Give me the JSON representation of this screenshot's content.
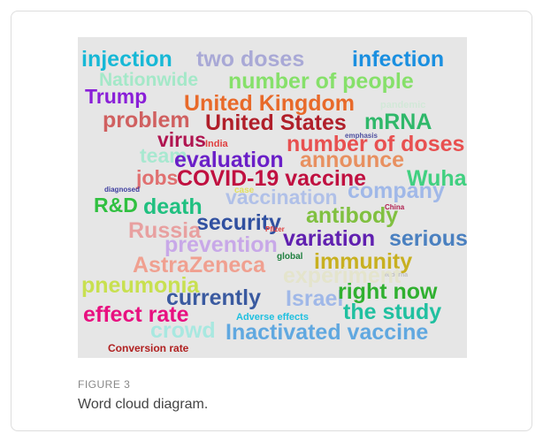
{
  "figure": {
    "words": [
      {
        "text": "injection",
        "color": "#17b8d6"
      },
      {
        "text": "two doses",
        "color": "#a9a9d6"
      },
      {
        "text": "infection",
        "color": "#1a8fe0"
      },
      {
        "text": "Nationwide",
        "color": "#a4e8c8"
      },
      {
        "text": "number of people",
        "color": "#86e06a"
      },
      {
        "text": "Trump",
        "color": "#8a1fd8"
      },
      {
        "text": "United Kingdom",
        "color": "#e86a2a"
      },
      {
        "text": "pandemic",
        "color": "#d2e8d8"
      },
      {
        "text": "problem",
        "color": "#d06060"
      },
      {
        "text": "United States",
        "color": "#b01f2a"
      },
      {
        "text": "mRNA",
        "color": "#2fb86a"
      },
      {
        "text": "emphasis",
        "color": "#5050a0"
      },
      {
        "text": "virus",
        "color": "#b01550"
      },
      {
        "text": "India",
        "color": "#e04040"
      },
      {
        "text": "number of doses",
        "color": "#e85050"
      },
      {
        "text": "team",
        "color": "#a8e8d0"
      },
      {
        "text": "evaluation",
        "color": "#6a1fc8"
      },
      {
        "text": "announce",
        "color": "#e89060"
      },
      {
        "text": "jobs",
        "color": "#e07070"
      },
      {
        "text": "COVID-19 vaccine",
        "color": "#c01040"
      },
      {
        "text": "Wuhan",
        "color": "#40d080"
      },
      {
        "text": "diagnosed",
        "color": "#4040a0"
      },
      {
        "text": "case",
        "color": "#e0e060"
      },
      {
        "text": "company",
        "color": "#a0b8e8"
      },
      {
        "text": "R&D",
        "color": "#30c040"
      },
      {
        "text": "death",
        "color": "#20c080"
      },
      {
        "text": "vaccination",
        "color": "#b0c0e8"
      },
      {
        "text": "China",
        "color": "#b02050"
      },
      {
        "text": "security",
        "color": "#3050a0"
      },
      {
        "text": "antibody",
        "color": "#80c040"
      },
      {
        "text": "Russia",
        "color": "#e8a0a0"
      },
      {
        "text": "Pfizer",
        "color": "#e04040"
      },
      {
        "text": "variation",
        "color": "#6020b0"
      },
      {
        "text": "serious",
        "color": "#4a80c0"
      },
      {
        "text": "prevention",
        "color": "#c8a8e8"
      },
      {
        "text": "global",
        "color": "#208040"
      },
      {
        "text": "immunity",
        "color": "#c8b020"
      },
      {
        "text": "AstraZeneca",
        "color": "#f0a090"
      },
      {
        "text": "Moderna",
        "color": "#c0c0c0"
      },
      {
        "text": "experiment",
        "color": "#e4e4cc"
      },
      {
        "text": "pneumonia",
        "color": "#c8e050"
      },
      {
        "text": "currently",
        "color": "#3a5aa0"
      },
      {
        "text": "Israel",
        "color": "#a0b8e8"
      },
      {
        "text": "right now",
        "color": "#30b030"
      },
      {
        "text": "effect rate",
        "color": "#e81080"
      },
      {
        "text": "Adverse effects",
        "color": "#20c0e0"
      },
      {
        "text": "the study",
        "color": "#20c0a0"
      },
      {
        "text": "crowd",
        "color": "#a8e8e0"
      },
      {
        "text": "Inactivated vaccine",
        "color": "#60a8e0"
      },
      {
        "text": "Conversion rate",
        "color": "#b02020"
      }
    ],
    "label": "FIGURE 3",
    "caption": "Word cloud diagram."
  }
}
